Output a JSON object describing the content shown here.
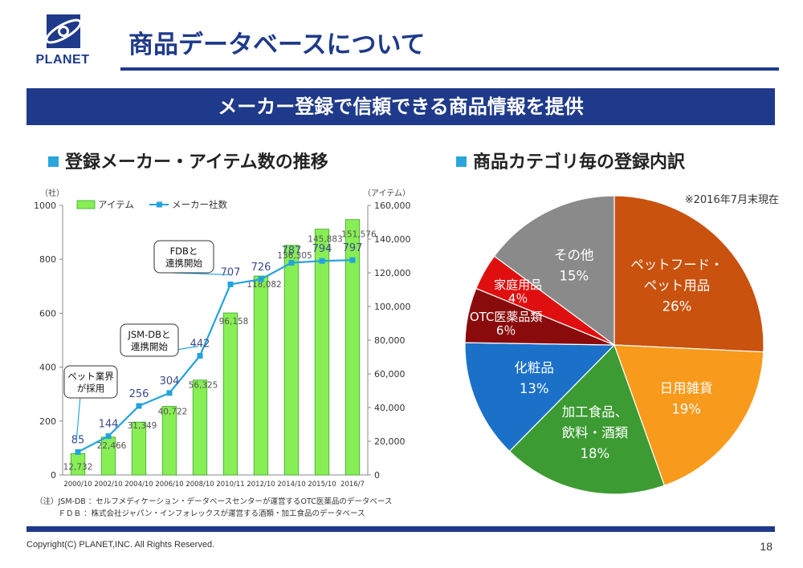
{
  "header": {
    "logo_text": "PLANET",
    "title": "商品データベースについて",
    "banner": "メーカー登録で信頼できる商品情報を提供"
  },
  "sections": {
    "left_title": "登録メーカー・アイテム数の推移",
    "right_title": "商品カテゴリ毎の登録内訳"
  },
  "notes": {
    "line1": "（注）JSM-DB ：セルフメディケーション・データベースセンターが運営するOTC医薬品のデータベース",
    "line2": "　　　ＦＤＢ ：株式会社ジャパン・インフォレックスが運営する酒類・加工食品のデータベース"
  },
  "footer": {
    "copyright": "Copyright(C) PLANET,INC. All Rights Reserved.",
    "page": "18"
  },
  "colors": {
    "navy": "#1f3a8a",
    "bar": "#88ee55",
    "line": "#22a3dd",
    "callout_line": "#2aa6dd"
  },
  "chart_data": [
    {
      "type": "bar+line",
      "title": "登録メーカー・アイテム数の推移",
      "categories": [
        "2000/10",
        "2002/10",
        "2004/10",
        "2006/10",
        "2008/10",
        "2010/11",
        "2012/10",
        "2014/10",
        "2015/10",
        "2016/7"
      ],
      "left_axis_unit": "（社）",
      "right_axis_unit": "（アイテム）",
      "left_ylim": [
        0,
        1000
      ],
      "right_ylim": [
        0,
        160000
      ],
      "left_ticks": [
        "0",
        "200",
        "400",
        "600",
        "800",
        "1000"
      ],
      "right_ticks": [
        "0",
        "20,000",
        "40,000",
        "60,000",
        "80,000",
        "100,000",
        "120,000",
        "140,000",
        "160,000"
      ],
      "legend": {
        "bars": "アイテム",
        "line": "メーカー社数"
      },
      "series": [
        {
          "name": "アイテム",
          "axis": "right",
          "kind": "bar",
          "values": [
            12732,
            22466,
            31349,
            40722,
            56325,
            96158,
            118082,
            136305,
            145883,
            151576
          ],
          "labels": [
            "12,732",
            "22,466",
            "31,349",
            "40,722",
            "56,325",
            "96,158",
            "118,082",
            "136,305",
            "145,883",
            "151,576"
          ]
        },
        {
          "name": "メーカー社数",
          "axis": "left",
          "kind": "line",
          "values": [
            85,
            144,
            256,
            304,
            442,
            707,
            726,
            787,
            794,
            797
          ],
          "labels": [
            "85",
            "144",
            "256",
            "304",
            "442",
            "707",
            "726",
            "787",
            "794",
            "797"
          ]
        }
      ],
      "callouts": [
        {
          "index": 0,
          "text": [
            "ペット業界",
            "が採用"
          ]
        },
        {
          "index": 4,
          "text": [
            "JSM-DBと",
            "連携開始"
          ]
        },
        {
          "index": 5,
          "text": [
            "FDBと",
            "連携開始"
          ]
        }
      ]
    },
    {
      "type": "pie",
      "title": "商品カテゴリ毎の登録内訳",
      "subtitle": "※2016年7月末現在",
      "slices": [
        {
          "label": [
            "ペットフード・",
            "ペット用品"
          ],
          "value": 26,
          "pct": "26%",
          "color": "#c9520e"
        },
        {
          "label": [
            "日用雑貨"
          ],
          "value": 19,
          "pct": "19%",
          "color": "#f89a1c"
        },
        {
          "label": [
            "加工食品、",
            "飲料・酒類"
          ],
          "value": 18,
          "pct": "18%",
          "color": "#3c9b32"
        },
        {
          "label": [
            "化粧品"
          ],
          "value": 13,
          "pct": "13%",
          "color": "#1b70c8"
        },
        {
          "label": [
            "OTC医薬品類"
          ],
          "value": 6,
          "pct": "6％",
          "color": "#8a0b0b"
        },
        {
          "label": [
            "家庭用品"
          ],
          "value": 4,
          "pct": "4％",
          "color": "#e00f0f"
        },
        {
          "label": [
            "その他"
          ],
          "value": 15,
          "pct": "15%",
          "color": "#8a8a8a"
        }
      ]
    }
  ]
}
